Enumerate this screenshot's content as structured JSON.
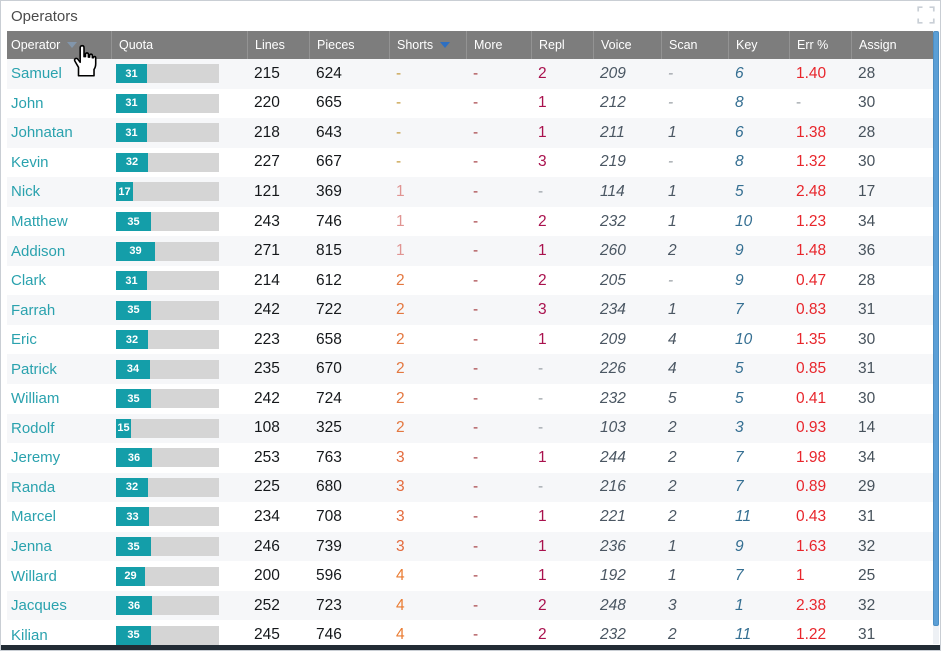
{
  "window": {
    "title": "Operators"
  },
  "controls": {
    "fullscreen_tooltip": "Expand"
  },
  "table": {
    "columns": [
      {
        "key": "name",
        "label": "Operator",
        "sort": "down",
        "sort_color": "#8296ab"
      },
      {
        "key": "quota",
        "label": "Quota"
      },
      {
        "key": "lines",
        "label": "Lines"
      },
      {
        "key": "pieces",
        "label": "Pieces"
      },
      {
        "key": "shorts",
        "label": "Shorts",
        "sort": "down",
        "sort_color": "#2d6fc2"
      },
      {
        "key": "more",
        "label": "More"
      },
      {
        "key": "repl",
        "label": "Repl"
      },
      {
        "key": "voice",
        "label": "Voice"
      },
      {
        "key": "scan",
        "label": "Scan"
      },
      {
        "key": "key",
        "label": "Key"
      },
      {
        "key": "err",
        "label": "Err %"
      },
      {
        "key": "assign",
        "label": "Assign"
      }
    ],
    "rows": [
      {
        "name": "Samuel",
        "quota": 31,
        "lines": 215,
        "pieces": 624,
        "shorts": "-",
        "more": "-",
        "repl": "2",
        "voice": "209",
        "scan": "-",
        "key": "6",
        "err": "1.40",
        "assign": "28"
      },
      {
        "name": "John",
        "quota": 31,
        "lines": 220,
        "pieces": 665,
        "shorts": "-",
        "more": "-",
        "repl": "1",
        "voice": "212",
        "scan": "-",
        "key": "8",
        "err": "-",
        "assign": "30"
      },
      {
        "name": "Johnatan",
        "quota": 31,
        "lines": 218,
        "pieces": 643,
        "shorts": "-",
        "more": "-",
        "repl": "1",
        "voice": "211",
        "scan": "1",
        "key": "6",
        "err": "1.38",
        "assign": "28"
      },
      {
        "name": "Kevin",
        "quota": 32,
        "lines": 227,
        "pieces": 667,
        "shorts": "-",
        "more": "-",
        "repl": "3",
        "voice": "219",
        "scan": "-",
        "key": "8",
        "err": "1.32",
        "assign": "30"
      },
      {
        "name": "Nick",
        "quota": 17,
        "lines": 121,
        "pieces": 369,
        "shorts": "1",
        "more": "-",
        "repl": "-",
        "voice": "114",
        "scan": "1",
        "key": "5",
        "err": "2.48",
        "assign": "17"
      },
      {
        "name": "Matthew",
        "quota": 35,
        "lines": 243,
        "pieces": 746,
        "shorts": "1",
        "more": "-",
        "repl": "2",
        "voice": "232",
        "scan": "1",
        "key": "10",
        "err": "1.23",
        "assign": "34"
      },
      {
        "name": "Addison",
        "quota": 39,
        "lines": 271,
        "pieces": 815,
        "shorts": "1",
        "more": "-",
        "repl": "1",
        "voice": "260",
        "scan": "2",
        "key": "9",
        "err": "1.48",
        "assign": "36"
      },
      {
        "name": "Clark",
        "quota": 31,
        "lines": 214,
        "pieces": 612,
        "shorts": "2",
        "more": "-",
        "repl": "2",
        "voice": "205",
        "scan": "-",
        "key": "9",
        "err": "0.47",
        "assign": "28"
      },
      {
        "name": "Farrah",
        "quota": 35,
        "lines": 242,
        "pieces": 722,
        "shorts": "2",
        "more": "-",
        "repl": "3",
        "voice": "234",
        "scan": "1",
        "key": "7",
        "err": "0.83",
        "assign": "31"
      },
      {
        "name": "Eric",
        "quota": 32,
        "lines": 223,
        "pieces": 658,
        "shorts": "2",
        "more": "-",
        "repl": "1",
        "voice": "209",
        "scan": "4",
        "key": "10",
        "err": "1.35",
        "assign": "30"
      },
      {
        "name": "Patrick",
        "quota": 34,
        "lines": 235,
        "pieces": 670,
        "shorts": "2",
        "more": "-",
        "repl": "-",
        "voice": "226",
        "scan": "4",
        "key": "5",
        "err": "0.85",
        "assign": "31"
      },
      {
        "name": "William",
        "quota": 35,
        "lines": 242,
        "pieces": 724,
        "shorts": "2",
        "more": "-",
        "repl": "-",
        "voice": "232",
        "scan": "5",
        "key": "5",
        "err": "0.41",
        "assign": "30"
      },
      {
        "name": "Rodolf",
        "quota": 15,
        "lines": 108,
        "pieces": 325,
        "shorts": "2",
        "more": "-",
        "repl": "-",
        "voice": "103",
        "scan": "2",
        "key": "3",
        "err": "0.93",
        "assign": "14"
      },
      {
        "name": "Jeremy",
        "quota": 36,
        "lines": 253,
        "pieces": 763,
        "shorts": "3",
        "more": "-",
        "repl": "1",
        "voice": "244",
        "scan": "2",
        "key": "7",
        "err": "1.98",
        "assign": "34"
      },
      {
        "name": "Randa",
        "quota": 32,
        "lines": 225,
        "pieces": 680,
        "shorts": "3",
        "more": "-",
        "repl": "-",
        "voice": "216",
        "scan": "2",
        "key": "7",
        "err": "0.89",
        "assign": "29"
      },
      {
        "name": "Marcel",
        "quota": 33,
        "lines": 234,
        "pieces": 708,
        "shorts": "3",
        "more": "-",
        "repl": "1",
        "voice": "221",
        "scan": "2",
        "key": "11",
        "err": "0.43",
        "assign": "31"
      },
      {
        "name": "Jenna",
        "quota": 35,
        "lines": 246,
        "pieces": 739,
        "shorts": "3",
        "more": "-",
        "repl": "1",
        "voice": "236",
        "scan": "1",
        "key": "9",
        "err": "1.63",
        "assign": "32"
      },
      {
        "name": "Willard",
        "quota": 29,
        "lines": 200,
        "pieces": 596,
        "shorts": "4",
        "more": "-",
        "repl": "1",
        "voice": "192",
        "scan": "1",
        "key": "7",
        "err": "1",
        "assign": "25"
      },
      {
        "name": "Jacques",
        "quota": 36,
        "lines": 252,
        "pieces": 723,
        "shorts": "4",
        "more": "-",
        "repl": "2",
        "voice": "248",
        "scan": "3",
        "key": "1",
        "err": "2.38",
        "assign": "32"
      },
      {
        "name": "Kilian",
        "quota": 35,
        "lines": 245,
        "pieces": 746,
        "shorts": "4",
        "more": "-",
        "repl": "2",
        "voice": "232",
        "scan": "2",
        "key": "11",
        "err": "1.22",
        "assign": "31"
      }
    ]
  },
  "colors": {
    "header_bg": "#7d7d7d",
    "stripe": "#f6f7f9",
    "name_teal": "#2aa2ae",
    "quota_fill": "#149ea9",
    "quota_track": "#d5d5d5",
    "shorts": {
      "-": "#c59b3e",
      "1": "#e09492",
      "2": "#e3773f",
      "3": "#e36a3c",
      "4": "#ea7b31"
    },
    "more_dash": "#a84448",
    "repl": "#a9114d",
    "err": "#e8262c",
    "muted_dash": "#9aa0a6",
    "scrollbar_thumb": "#5b9fd6"
  }
}
